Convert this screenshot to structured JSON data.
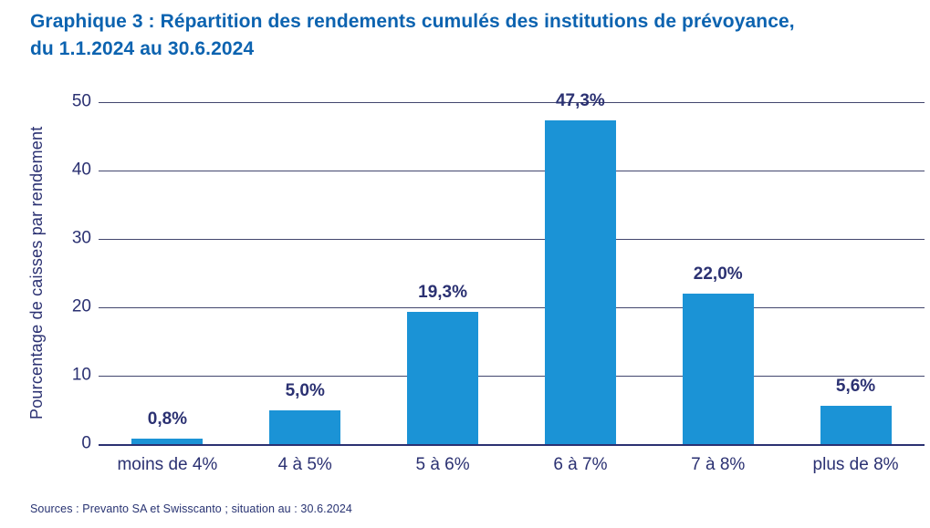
{
  "title": {
    "line1": "Graphique 3 : Répartition des rendements cumulés des institutions de prévoyance,",
    "line2": "du 1.1.2024 au 30.6.2024"
  },
  "source": "Sources : Prevanto SA et Swisscanto ; situation au : 30.6.2024",
  "colors": {
    "title_blue": "#0c63b0",
    "bar_blue": "#1b93d6",
    "text_navy": "#2b3172",
    "gridline": "#42466e"
  },
  "chart_data": {
    "type": "bar",
    "title": "Graphique 3 : Répartition des rendements cumulés des institutions de prévoyance, du 1.1.2024 au 30.6.2024",
    "categories": [
      "moins de 4%",
      "4 à 5%",
      "5 à 6%",
      "6 à 7%",
      "7 à 8%",
      "plus de 8%"
    ],
    "values": [
      0.8,
      5.0,
      19.3,
      47.3,
      22.0,
      5.6
    ],
    "value_labels": [
      "0,8%",
      "5,0%",
      "19,3%",
      "47,3%",
      "22,0%",
      "5,6%"
    ],
    "xlabel": "",
    "ylabel": "Pourcentage de caisses par rendement",
    "ylim": [
      0,
      50
    ],
    "yticks": [
      0,
      10,
      20,
      30,
      40,
      50
    ],
    "grid": "horizontal",
    "legend": "none",
    "bar_color": "#1b93d6"
  }
}
